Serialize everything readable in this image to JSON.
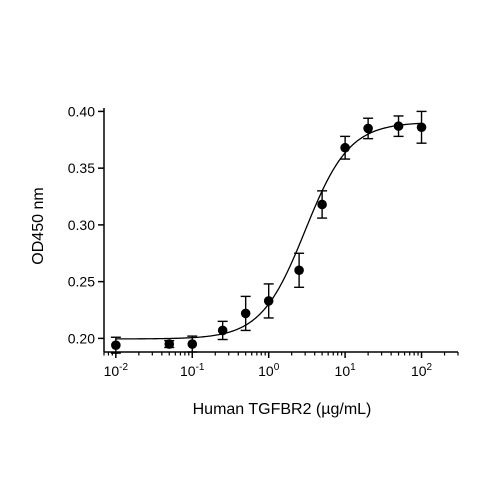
{
  "chart_data": {
    "type": "scatter",
    "title": "",
    "xlabel": "Human TGFBR2 (µg/mL)",
    "ylabel": "OD450 nm",
    "x_scale": "log",
    "xlim": [
      0.007,
      300
    ],
    "ylim": [
      0.188,
      0.403
    ],
    "x_ticks": [
      {
        "value": 0.01,
        "base": "10",
        "exp": "-2"
      },
      {
        "value": 0.1,
        "base": "10",
        "exp": "-1"
      },
      {
        "value": 1,
        "base": "10",
        "exp": "0"
      },
      {
        "value": 10,
        "base": "10",
        "exp": "1"
      },
      {
        "value": 100,
        "base": "10",
        "exp": "2"
      }
    ],
    "y_ticks": [
      {
        "value": 0.2,
        "label": "0.20"
      },
      {
        "value": 0.25,
        "label": "0.25"
      },
      {
        "value": 0.3,
        "label": "0.30"
      },
      {
        "value": 0.35,
        "label": "0.35"
      },
      {
        "value": 0.4,
        "label": "0.40"
      }
    ],
    "points": [
      {
        "x": 0.01,
        "y": 0.194,
        "err": 0.007
      },
      {
        "x": 0.05,
        "y": 0.195,
        "err": 0.003
      },
      {
        "x": 0.1,
        "y": 0.195,
        "err": 0.007
      },
      {
        "x": 0.25,
        "y": 0.207,
        "err": 0.008
      },
      {
        "x": 0.5,
        "y": 0.222,
        "err": 0.015
      },
      {
        "x": 1,
        "y": 0.233,
        "err": 0.015
      },
      {
        "x": 2.5,
        "y": 0.26,
        "err": 0.015
      },
      {
        "x": 5,
        "y": 0.318,
        "err": 0.012
      },
      {
        "x": 10,
        "y": 0.368,
        "err": 0.01
      },
      {
        "x": 20,
        "y": 0.385,
        "err": 0.009
      },
      {
        "x": 50,
        "y": 0.387,
        "err": 0.009
      },
      {
        "x": 100,
        "y": 0.386,
        "err": 0.014
      }
    ],
    "fit_curve": {
      "model": "4PL",
      "bottom": 0.1995,
      "top": 0.3905,
      "ec50": 3.0,
      "hill": 1.5
    },
    "grid": false,
    "legend": "none",
    "marker_color": "#000000"
  }
}
